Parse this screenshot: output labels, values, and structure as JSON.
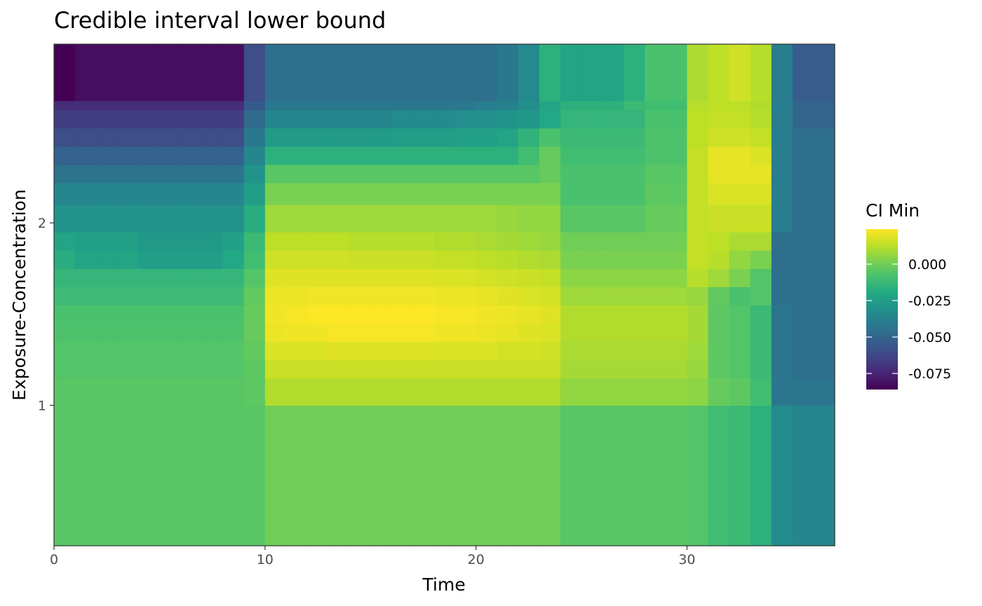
{
  "chart_data": {
    "type": "heatmap",
    "title": "Credible interval lower bound",
    "xlabel": "Time",
    "ylabel": "Exposure-Concentration",
    "xlim": [
      0,
      37
    ],
    "ylim": [
      0.23,
      2.98
    ],
    "x_ticks": [
      0,
      10,
      20,
      30
    ],
    "x_tick_labels": [
      "0",
      "10",
      "20",
      "30"
    ],
    "y_ticks": [
      1,
      2
    ],
    "y_tick_labels": [
      "1",
      "2"
    ],
    "x_edges": [
      0,
      1,
      2,
      3,
      4,
      5,
      6,
      7,
      8,
      9,
      10,
      11,
      12,
      13,
      14,
      15,
      16,
      17,
      18,
      19,
      20,
      21,
      22,
      23,
      24,
      25,
      26,
      27,
      28,
      29,
      30,
      31,
      32,
      33,
      34,
      35,
      36,
      37
    ],
    "y_bands": [
      [
        0.23,
        1.0
      ],
      [
        1.0,
        1.15
      ],
      [
        1.15,
        1.25
      ],
      [
        1.25,
        1.35
      ],
      [
        1.35,
        1.45
      ],
      [
        1.45,
        1.55
      ],
      [
        1.55,
        1.65
      ],
      [
        1.65,
        1.75
      ],
      [
        1.75,
        1.85
      ],
      [
        1.85,
        1.95
      ],
      [
        1.95,
        2.1
      ],
      [
        2.1,
        2.22
      ],
      [
        2.22,
        2.32
      ],
      [
        2.32,
        2.42
      ],
      [
        2.42,
        2.52
      ],
      [
        2.52,
        2.62
      ],
      [
        2.62,
        2.67
      ],
      [
        2.67,
        2.98
      ]
    ],
    "values": [
      [
        -0.005,
        -0.005,
        -0.005,
        -0.005,
        -0.005,
        -0.005,
        -0.005,
        -0.005,
        -0.005,
        -0.005,
        0.0,
        0.0,
        0.0,
        0.0,
        0.0,
        0.0,
        0.0,
        0.0,
        0.0,
        0.0,
        0.0,
        0.0,
        0.0,
        0.0,
        -0.005,
        -0.005,
        -0.005,
        -0.005,
        -0.005,
        -0.005,
        -0.006,
        -0.01,
        -0.012,
        -0.016,
        -0.033,
        -0.036,
        -0.036
      ],
      [
        -0.005,
        -0.005,
        -0.005,
        -0.005,
        -0.005,
        -0.005,
        -0.005,
        -0.005,
        -0.005,
        -0.004,
        0.011,
        0.011,
        0.011,
        0.011,
        0.011,
        0.011,
        0.011,
        0.011,
        0.011,
        0.011,
        0.011,
        0.011,
        0.011,
        0.011,
        0.006,
        0.006,
        0.006,
        0.006,
        0.006,
        0.006,
        0.005,
        -0.002,
        -0.004,
        -0.01,
        -0.043,
        -0.043,
        -0.043
      ],
      [
        -0.006,
        -0.006,
        -0.006,
        -0.006,
        -0.006,
        -0.006,
        -0.006,
        -0.006,
        -0.006,
        -0.004,
        0.015,
        0.015,
        0.015,
        0.015,
        0.015,
        0.015,
        0.015,
        0.015,
        0.015,
        0.015,
        0.015,
        0.015,
        0.015,
        0.015,
        0.009,
        0.009,
        0.009,
        0.009,
        0.009,
        0.009,
        0.007,
        -0.004,
        -0.006,
        -0.012,
        -0.043,
        -0.046,
        -0.046
      ],
      [
        -0.006,
        -0.006,
        -0.006,
        -0.006,
        -0.006,
        -0.006,
        -0.006,
        -0.006,
        -0.006,
        -0.003,
        0.018,
        0.018,
        0.018,
        0.019,
        0.019,
        0.019,
        0.019,
        0.019,
        0.018,
        0.018,
        0.018,
        0.017,
        0.017,
        0.016,
        0.01,
        0.01,
        0.01,
        0.01,
        0.01,
        0.01,
        0.008,
        -0.004,
        -0.006,
        -0.012,
        -0.043,
        -0.046,
        -0.046
      ],
      [
        -0.007,
        -0.007,
        -0.007,
        -0.007,
        -0.007,
        -0.007,
        -0.007,
        -0.007,
        -0.007,
        -0.002,
        0.021,
        0.022,
        0.022,
        0.023,
        0.023,
        0.023,
        0.023,
        0.023,
        0.022,
        0.022,
        0.021,
        0.02,
        0.019,
        0.018,
        0.011,
        0.011,
        0.011,
        0.011,
        0.011,
        0.011,
        0.009,
        -0.004,
        -0.006,
        -0.012,
        -0.043,
        -0.046,
        -0.046
      ],
      [
        -0.008,
        -0.008,
        -0.008,
        -0.008,
        -0.008,
        -0.008,
        -0.008,
        -0.008,
        -0.008,
        -0.002,
        0.022,
        0.023,
        0.024,
        0.024,
        0.024,
        0.024,
        0.024,
        0.024,
        0.023,
        0.023,
        0.022,
        0.021,
        0.02,
        0.019,
        0.011,
        0.011,
        0.011,
        0.011,
        0.011,
        0.011,
        0.009,
        -0.004,
        -0.006,
        -0.012,
        -0.043,
        -0.046,
        -0.046
      ],
      [
        -0.011,
        -0.011,
        -0.011,
        -0.011,
        -0.011,
        -0.011,
        -0.011,
        -0.011,
        -0.011,
        -0.003,
        0.021,
        0.021,
        0.022,
        0.022,
        0.022,
        0.022,
        0.022,
        0.022,
        0.021,
        0.021,
        0.02,
        0.019,
        0.018,
        0.017,
        0.008,
        0.008,
        0.008,
        0.008,
        0.008,
        0.008,
        0.007,
        -0.003,
        -0.008,
        -0.006,
        -0.046,
        -0.046,
        -0.046
      ],
      [
        -0.014,
        -0.014,
        -0.014,
        -0.014,
        -0.014,
        -0.014,
        -0.014,
        -0.014,
        -0.014,
        -0.006,
        0.019,
        0.019,
        0.019,
        0.019,
        0.019,
        0.019,
        0.019,
        0.019,
        0.018,
        0.018,
        0.017,
        0.016,
        0.015,
        0.014,
        0.005,
        0.005,
        0.005,
        0.005,
        0.005,
        0.005,
        0.012,
        0.008,
        0.002,
        -0.006,
        -0.046,
        -0.046,
        -0.046
      ],
      [
        -0.018,
        -0.022,
        -0.022,
        -0.022,
        -0.025,
        -0.025,
        -0.025,
        -0.025,
        -0.02,
        -0.01,
        0.016,
        0.016,
        0.016,
        0.016,
        0.015,
        0.015,
        0.015,
        0.015,
        0.014,
        0.014,
        0.013,
        0.012,
        0.011,
        0.01,
        0.002,
        0.002,
        0.002,
        0.002,
        0.002,
        0.002,
        0.014,
        0.012,
        0.006,
        0.002,
        -0.046,
        -0.046,
        -0.046
      ],
      [
        -0.022,
        -0.024,
        -0.024,
        -0.024,
        -0.027,
        -0.027,
        -0.027,
        -0.027,
        -0.024,
        -0.012,
        0.013,
        0.013,
        0.013,
        0.013,
        0.012,
        0.012,
        0.012,
        0.012,
        0.011,
        0.011,
        0.01,
        0.009,
        0.008,
        0.007,
        0.0,
        0.0,
        0.0,
        0.0,
        0.0,
        0.0,
        0.014,
        0.013,
        0.01,
        0.01,
        -0.046,
        -0.046,
        -0.046
      ],
      [
        -0.03,
        -0.03,
        -0.03,
        -0.03,
        -0.03,
        -0.03,
        -0.03,
        -0.03,
        -0.03,
        -0.018,
        0.008,
        0.008,
        0.008,
        0.008,
        0.008,
        0.008,
        0.008,
        0.008,
        0.008,
        0.008,
        0.008,
        0.007,
        0.006,
        0.006,
        -0.005,
        -0.005,
        -0.005,
        -0.005,
        -0.002,
        -0.002,
        0.014,
        0.015,
        0.015,
        0.015,
        -0.04,
        -0.046,
        -0.046
      ],
      [
        -0.036,
        -0.036,
        -0.036,
        -0.036,
        -0.036,
        -0.036,
        -0.036,
        -0.036,
        -0.036,
        -0.025,
        0.002,
        0.002,
        0.002,
        0.002,
        0.002,
        0.002,
        0.002,
        0.002,
        0.002,
        0.002,
        0.002,
        0.002,
        0.002,
        0.002,
        -0.008,
        -0.008,
        -0.008,
        -0.008,
        -0.004,
        -0.004,
        0.014,
        0.018,
        0.018,
        0.018,
        -0.04,
        -0.046,
        -0.046
      ],
      [
        -0.044,
        -0.044,
        -0.044,
        -0.044,
        -0.044,
        -0.044,
        -0.044,
        -0.044,
        -0.044,
        -0.03,
        -0.005,
        -0.005,
        -0.005,
        -0.005,
        -0.005,
        -0.005,
        -0.005,
        -0.005,
        -0.005,
        -0.005,
        -0.005,
        -0.005,
        -0.005,
        -0.002,
        -0.008,
        -0.008,
        -0.008,
        -0.008,
        -0.005,
        -0.005,
        0.014,
        0.02,
        0.02,
        0.02,
        -0.04,
        -0.046,
        -0.046
      ],
      [
        -0.052,
        -0.052,
        -0.052,
        -0.052,
        -0.052,
        -0.052,
        -0.052,
        -0.052,
        -0.052,
        -0.036,
        -0.016,
        -0.016,
        -0.016,
        -0.016,
        -0.016,
        -0.016,
        -0.016,
        -0.016,
        -0.016,
        -0.016,
        -0.016,
        -0.016,
        -0.01,
        -0.002,
        -0.01,
        -0.01,
        -0.01,
        -0.01,
        -0.007,
        -0.007,
        0.014,
        0.02,
        0.02,
        0.018,
        -0.04,
        -0.046,
        -0.046
      ],
      [
        -0.06,
        -0.06,
        -0.06,
        -0.06,
        -0.06,
        -0.06,
        -0.06,
        -0.06,
        -0.06,
        -0.042,
        -0.026,
        -0.026,
        -0.026,
        -0.026,
        -0.026,
        -0.026,
        -0.025,
        -0.025,
        -0.025,
        -0.024,
        -0.024,
        -0.022,
        -0.015,
        -0.008,
        -0.012,
        -0.012,
        -0.012,
        -0.012,
        -0.007,
        -0.007,
        0.013,
        0.016,
        0.016,
        0.014,
        -0.04,
        -0.046,
        -0.046
      ],
      [
        -0.066,
        -0.066,
        -0.066,
        -0.066,
        -0.066,
        -0.066,
        -0.066,
        -0.066,
        -0.066,
        -0.048,
        -0.036,
        -0.036,
        -0.036,
        -0.036,
        -0.036,
        -0.036,
        -0.034,
        -0.034,
        -0.034,
        -0.032,
        -0.032,
        -0.03,
        -0.028,
        -0.02,
        -0.014,
        -0.014,
        -0.014,
        -0.014,
        -0.008,
        -0.008,
        0.013,
        0.014,
        0.014,
        0.012,
        -0.04,
        -0.05,
        -0.05
      ],
      [
        -0.072,
        -0.072,
        -0.072,
        -0.072,
        -0.072,
        -0.072,
        -0.072,
        -0.072,
        -0.072,
        -0.055,
        -0.042,
        -0.042,
        -0.042,
        -0.042,
        -0.042,
        -0.042,
        -0.042,
        -0.042,
        -0.042,
        -0.042,
        -0.04,
        -0.038,
        -0.032,
        -0.022,
        -0.016,
        -0.016,
        -0.016,
        -0.012,
        -0.01,
        -0.01,
        0.012,
        0.013,
        0.013,
        0.011,
        -0.04,
        -0.05,
        -0.05
      ],
      [
        -0.088,
        -0.082,
        -0.082,
        -0.082,
        -0.082,
        -0.082,
        -0.082,
        -0.082,
        -0.082,
        -0.06,
        -0.046,
        -0.046,
        -0.046,
        -0.046,
        -0.046,
        -0.046,
        -0.046,
        -0.046,
        -0.046,
        -0.046,
        -0.046,
        -0.042,
        -0.034,
        -0.016,
        -0.022,
        -0.022,
        -0.022,
        -0.016,
        -0.008,
        -0.008,
        0.01,
        0.013,
        0.016,
        0.012,
        -0.04,
        -0.054,
        -0.054
      ]
    ],
    "color_scale": "viridis",
    "color_limits": [
      -0.086,
      0.024
    ],
    "legend": {
      "title": "CI Min",
      "ticks": [
        0.0,
        -0.025,
        -0.05,
        -0.075
      ],
      "tick_labels": [
        "0.000",
        "-0.025",
        "-0.050",
        "-0.075"
      ],
      "position": "right"
    },
    "grid": false
  }
}
